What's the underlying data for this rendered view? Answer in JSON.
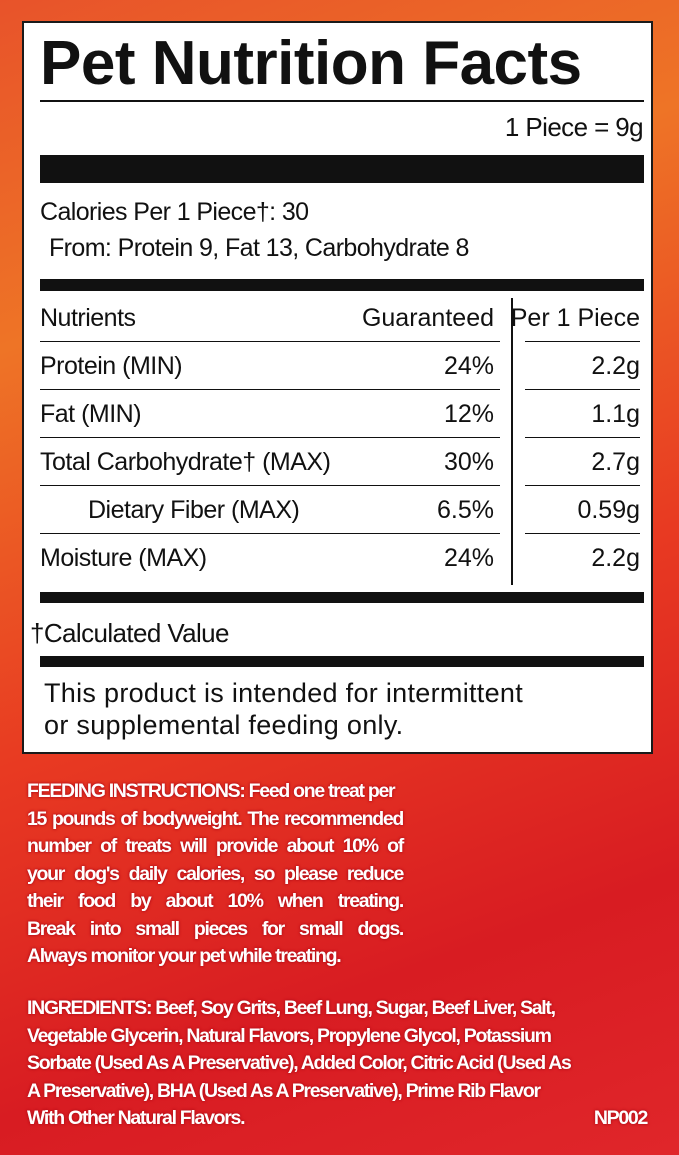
{
  "colors": {
    "background_orange": "#ee7426",
    "background_red": "#d81c22",
    "label_bg": "#ffffff",
    "ink": "#111111"
  },
  "title": "Pet Nutrition Facts",
  "serving": "1 Piece = 9g",
  "calories": {
    "line": "Calories Per 1 Piece†: 30",
    "from": "From: Protein 9, Fat 13, Carbohydrate 8"
  },
  "table": {
    "headers": {
      "nutrients": "Nutrients",
      "guaranteed": "Guaranteed",
      "per_piece": "Per 1 Piece"
    },
    "rows": [
      {
        "name": "Protein (MIN)",
        "guaranteed": "24%",
        "per_piece": "2.2g"
      },
      {
        "name": "Fat (MIN)",
        "guaranteed": "12%",
        "per_piece": "1.1g"
      },
      {
        "name": "Total Carbohydrate† (MAX)",
        "guaranteed": "30%",
        "per_piece": "2.7g"
      },
      {
        "name": "Dietary Fiber (MAX)",
        "guaranteed": "6.5%",
        "per_piece": "0.59g"
      },
      {
        "name": "Moisture (MAX)",
        "guaranteed": "24%",
        "per_piece": "2.2g"
      }
    ]
  },
  "footnote": "†Calculated Value",
  "notice": {
    "line1": "This product is intended for intermittent",
    "line2": "or supplemental feeding only."
  },
  "feeding": {
    "heading": "FEEDING INSTRUCTIONS:",
    "lines": [
      " Feed one treat per",
      "15 pounds of bodyweight. The recommended",
      "number of treats will provide about 10% of",
      "your dog's daily calories, so please reduce",
      "their food by about 10% when treating.",
      "Break into small pieces for small dogs.",
      "Always monitor your pet while treating."
    ]
  },
  "ingredients": {
    "heading": "INGREDIENTS:",
    "lines": [
      " Beef, Soy Grits, Beef Lung, Sugar, Beef Liver, Salt,",
      "Vegetable Glycerin, Natural Flavors, Propylene Glycol, Potassium",
      "Sorbate (Used As A Preservative), Added Color, Citric Acid (Used As",
      "A Preservative), BHA (Used As A Preservative), Prime Rib Flavor",
      "With Other Natural Flavors."
    ],
    "code": "NP002"
  }
}
